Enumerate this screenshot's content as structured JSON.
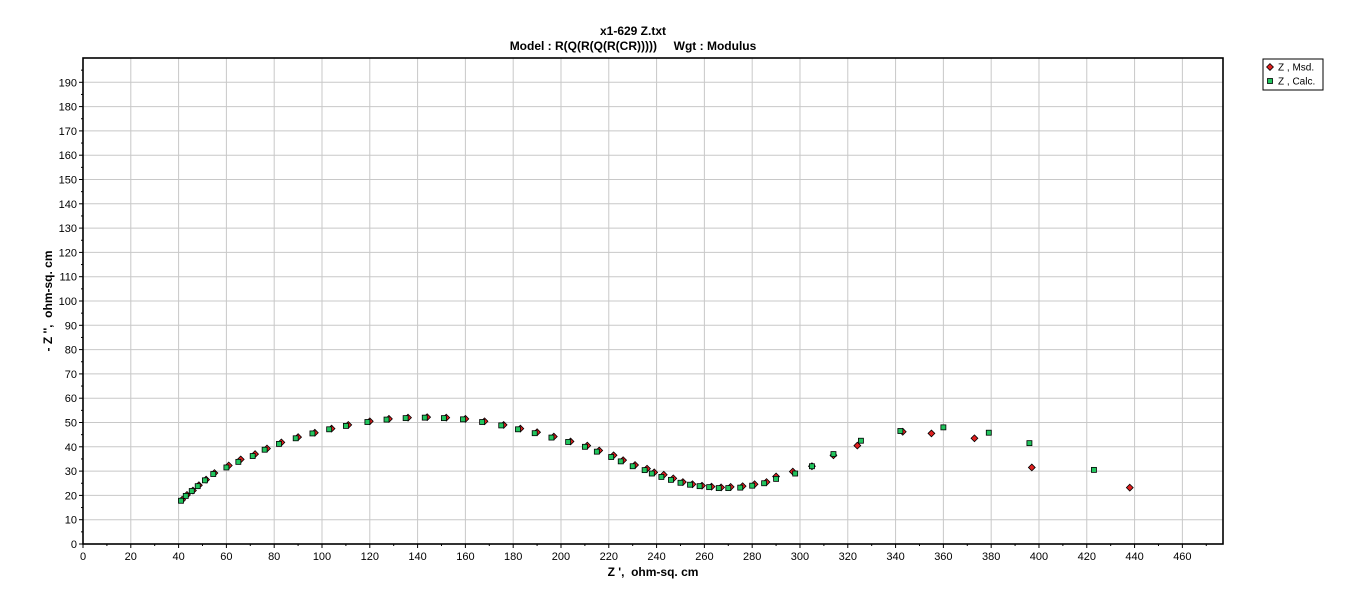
{
  "chart_data": {
    "type": "scatter",
    "title": "x1-629 Z.txt",
    "subtitle": "Model : R(Q(R(Q(R(CR)))))     Wgt : Modulus",
    "xlabel": "Z ',  ohm-sq. cm",
    "ylabel": "- Z '',  ohm-sq. cm",
    "xlim": [
      0,
      477
    ],
    "ylim": [
      0,
      200
    ],
    "x_ticks": [
      0,
      20,
      40,
      60,
      80,
      100,
      120,
      140,
      160,
      180,
      200,
      220,
      240,
      260,
      280,
      300,
      320,
      340,
      360,
      380,
      400,
      420,
      440,
      460
    ],
    "y_ticks": [
      0,
      10,
      20,
      30,
      40,
      50,
      60,
      70,
      80,
      90,
      100,
      110,
      120,
      130,
      140,
      150,
      160,
      170,
      180,
      190
    ],
    "grid": true,
    "legend_position": "outside-top-right",
    "series": [
      {
        "name": "Z ,  Msd.",
        "marker": "diamond",
        "color": "#e02020",
        "points": [
          [
            41.5,
            18.2
          ],
          [
            43.5,
            20.2
          ],
          [
            46,
            22
          ],
          [
            48.5,
            24.2
          ],
          [
            51.5,
            26.5
          ],
          [
            55,
            29.2
          ],
          [
            61,
            32.3
          ],
          [
            66,
            34.8
          ],
          [
            72,
            37
          ],
          [
            77,
            39.3
          ],
          [
            83,
            41.8
          ],
          [
            90,
            44
          ],
          [
            97,
            45.8
          ],
          [
            104,
            47.5
          ],
          [
            111,
            49
          ],
          [
            120,
            50.5
          ],
          [
            128,
            51.5
          ],
          [
            136,
            52
          ],
          [
            144,
            52.2
          ],
          [
            152,
            52
          ],
          [
            160,
            51.5
          ],
          [
            168,
            50.5
          ],
          [
            176,
            49
          ],
          [
            183,
            47.5
          ],
          [
            190,
            46
          ],
          [
            197,
            44.2
          ],
          [
            204,
            42.2
          ],
          [
            211,
            40.5
          ],
          [
            216,
            38.5
          ],
          [
            222,
            36.5
          ],
          [
            226,
            34.5
          ],
          [
            231,
            32.5
          ],
          [
            236,
            31
          ],
          [
            239,
            29.5
          ],
          [
            243,
            28.5
          ],
          [
            247,
            27
          ],
          [
            251,
            25.5
          ],
          [
            255,
            24.6
          ],
          [
            259,
            24
          ],
          [
            263,
            23.6
          ],
          [
            267,
            23.3
          ],
          [
            271,
            23.5
          ],
          [
            276,
            23.8
          ],
          [
            281,
            24.6
          ],
          [
            286,
            25.5
          ],
          [
            290,
            27.8
          ],
          [
            297,
            29.8
          ],
          [
            305,
            32
          ],
          [
            314,
            36.5
          ],
          [
            324,
            40.5
          ],
          [
            343,
            46.2
          ],
          [
            355,
            45.5
          ],
          [
            373,
            43.5
          ],
          [
            397,
            31.5
          ],
          [
            438,
            23.2
          ]
        ]
      },
      {
        "name": "Z ,  Calc.",
        "marker": "square",
        "color": "#22c55e",
        "points": [
          [
            41,
            17.8
          ],
          [
            43,
            19.8
          ],
          [
            45.5,
            21.8
          ],
          [
            48,
            23.8
          ],
          [
            51,
            26.2
          ],
          [
            54.5,
            28.8
          ],
          [
            60,
            31.5
          ],
          [
            65,
            33.8
          ],
          [
            71,
            36.2
          ],
          [
            76,
            38.8
          ],
          [
            82,
            41.2
          ],
          [
            89,
            43.5
          ],
          [
            96,
            45.5
          ],
          [
            103,
            47.2
          ],
          [
            110,
            48.6
          ],
          [
            119,
            50.2
          ],
          [
            127,
            51.2
          ],
          [
            135,
            51.8
          ],
          [
            143,
            52
          ],
          [
            151,
            51.8
          ],
          [
            159,
            51.3
          ],
          [
            167,
            50.2
          ],
          [
            175,
            48.8
          ],
          [
            182,
            47.2
          ],
          [
            189,
            45.6
          ],
          [
            196,
            43.8
          ],
          [
            203,
            42
          ],
          [
            210,
            40
          ],
          [
            215,
            38
          ],
          [
            221,
            35.8
          ],
          [
            225,
            34
          ],
          [
            230,
            32
          ],
          [
            235,
            30.4
          ],
          [
            238,
            29
          ],
          [
            242,
            27.6
          ],
          [
            246,
            26.4
          ],
          [
            250,
            25.2
          ],
          [
            254,
            24.4
          ],
          [
            258,
            23.8
          ],
          [
            262,
            23.4
          ],
          [
            266,
            23
          ],
          [
            270,
            23
          ],
          [
            275,
            23.2
          ],
          [
            280,
            24
          ],
          [
            285,
            25
          ],
          [
            290,
            26.8
          ],
          [
            298,
            29
          ],
          [
            305,
            32
          ],
          [
            314,
            37
          ],
          [
            325.5,
            42.5
          ],
          [
            342,
            46.5
          ],
          [
            360,
            48
          ],
          [
            379,
            45.8
          ],
          [
            396,
            41.5
          ],
          [
            423,
            30.5
          ]
        ]
      }
    ]
  }
}
